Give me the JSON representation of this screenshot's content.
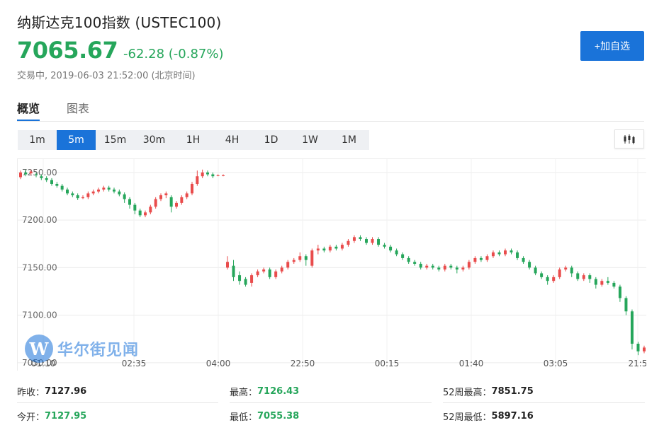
{
  "header": {
    "title": "纳斯达克100指数  (USTEC100)",
    "price": "7065.67",
    "change": "-62.28 (-0.87%)",
    "status_label": "交易中",
    "status_time": "2019-06-03 21:52:00 (北京时间)",
    "add_watch_label": "+加自选"
  },
  "tabs": [
    {
      "label": "概览",
      "active": true
    },
    {
      "label": "图表",
      "active": false
    }
  ],
  "intervals": [
    {
      "label": "1m",
      "active": false
    },
    {
      "label": "5m",
      "active": true
    },
    {
      "label": "15m",
      "active": false
    },
    {
      "label": "30m",
      "active": false
    },
    {
      "label": "1H",
      "active": false
    },
    {
      "label": "4H",
      "active": false
    },
    {
      "label": "1D",
      "active": false
    },
    {
      "label": "1W",
      "active": false
    },
    {
      "label": "1M",
      "active": false
    }
  ],
  "chart_type_icon": "candlestick-icon",
  "chart_data": {
    "type": "candlestick",
    "y_ticks": [
      "7250.00",
      "7200.00",
      "7150.00",
      "7100.00",
      "7050.00"
    ],
    "y_tick_values": [
      7250,
      7200,
      7150,
      7100,
      7050
    ],
    "ylim": [
      7044,
      7264
    ],
    "x_ticks": [
      "01:10",
      "02:35",
      "04:00",
      "22:50",
      "00:15",
      "01:40",
      "03:05",
      "21:5"
    ],
    "up_color": "#e94c4c",
    "down_color": "#26a65b",
    "candles": [
      [
        7245,
        7250,
        7243,
        7252
      ],
      [
        7250,
        7248,
        7246,
        7253
      ],
      [
        7249,
        7251,
        7247,
        7253
      ],
      [
        7248,
        7247,
        7245,
        7250
      ],
      [
        7246,
        7244,
        7242,
        7248
      ],
      [
        7244,
        7242,
        7240,
        7246
      ],
      [
        7242,
        7238,
        7236,
        7244
      ],
      [
        7238,
        7236,
        7234,
        7240
      ],
      [
        7236,
        7232,
        7230,
        7238
      ],
      [
        7232,
        7228,
        7226,
        7234
      ],
      [
        7228,
        7226,
        7224,
        7230
      ],
      [
        7226,
        7223,
        7221,
        7228
      ],
      [
        7223,
        7224,
        7222,
        7226
      ],
      [
        7224,
        7228,
        7222,
        7230
      ],
      [
        7228,
        7230,
        7226,
        7232
      ],
      [
        7230,
        7232,
        7228,
        7234
      ],
      [
        7232,
        7234,
        7230,
        7236
      ],
      [
        7234,
        7232,
        7230,
        7236
      ],
      [
        7232,
        7230,
        7228,
        7234
      ],
      [
        7230,
        7227,
        7225,
        7232
      ],
      [
        7227,
        7222,
        7218,
        7229
      ],
      [
        7222,
        7216,
        7212,
        7224
      ],
      [
        7216,
        7210,
        7206,
        7218
      ],
      [
        7210,
        7205,
        7203,
        7212
      ],
      [
        7205,
        7208,
        7203,
        7210
      ],
      [
        7208,
        7214,
        7206,
        7216
      ],
      [
        7214,
        7222,
        7212,
        7224
      ],
      [
        7222,
        7226,
        7220,
        7228
      ],
      [
        7226,
        7228,
        7223,
        7230
      ],
      [
        7224,
        7214,
        7208,
        7226
      ],
      [
        7214,
        7218,
        7212,
        7220
      ],
      [
        7218,
        7224,
        7216,
        7226
      ],
      [
        7224,
        7228,
        7222,
        7230
      ],
      [
        7228,
        7238,
        7226,
        7240
      ],
      [
        7238,
        7246,
        7236,
        7252
      ],
      [
        7246,
        7250,
        7244,
        7253
      ],
      [
        7250,
        7248,
        7246,
        7252
      ],
      [
        7248,
        7246,
        7244,
        7250
      ],
      [
        7247,
        7247,
        7246,
        7248
      ],
      [
        7247,
        7247,
        7246,
        7248
      ],
      [
        7150,
        7156,
        7148,
        7162
      ],
      [
        7152,
        7140,
        7136,
        7158
      ],
      [
        7142,
        7136,
        7132,
        7146
      ],
      [
        7138,
        7132,
        7130,
        7140
      ],
      [
        7134,
        7142,
        7130,
        7144
      ],
      [
        7142,
        7146,
        7140,
        7148
      ],
      [
        7146,
        7148,
        7144,
        7150
      ],
      [
        7148,
        7140,
        7138,
        7150
      ],
      [
        7140,
        7146,
        7138,
        7148
      ],
      [
        7146,
        7150,
        7144,
        7152
      ],
      [
        7150,
        7156,
        7148,
        7158
      ],
      [
        7156,
        7158,
        7154,
        7160
      ],
      [
        7158,
        7162,
        7156,
        7166
      ],
      [
        7162,
        7158,
        7152,
        7164
      ],
      [
        7152,
        7168,
        7150,
        7170
      ],
      [
        7168,
        7170,
        7164,
        7174
      ],
      [
        7170,
        7168,
        7166,
        7172
      ],
      [
        7168,
        7172,
        7166,
        7174
      ],
      [
        7172,
        7170,
        7168,
        7174
      ],
      [
        7170,
        7174,
        7168,
        7176
      ],
      [
        7174,
        7178,
        7172,
        7180
      ],
      [
        7178,
        7182,
        7176,
        7184
      ],
      [
        7182,
        7180,
        7178,
        7184
      ],
      [
        7180,
        7176,
        7174,
        7182
      ],
      [
        7176,
        7180,
        7174,
        7182
      ],
      [
        7180,
        7174,
        7172,
        7182
      ],
      [
        7174,
        7172,
        7170,
        7176
      ],
      [
        7172,
        7168,
        7166,
        7174
      ],
      [
        7168,
        7164,
        7162,
        7170
      ],
      [
        7164,
        7160,
        7158,
        7166
      ],
      [
        7160,
        7156,
        7154,
        7162
      ],
      [
        7156,
        7154,
        7152,
        7158
      ],
      [
        7154,
        7150,
        7148,
        7156
      ],
      [
        7150,
        7152,
        7148,
        7154
      ],
      [
        7152,
        7150,
        7148,
        7154
      ],
      [
        7150,
        7148,
        7146,
        7152
      ],
      [
        7148,
        7152,
        7146,
        7154
      ],
      [
        7152,
        7150,
        7148,
        7154
      ],
      [
        7150,
        7148,
        7144,
        7152
      ],
      [
        7148,
        7150,
        7146,
        7152
      ],
      [
        7150,
        7156,
        7148,
        7158
      ],
      [
        7156,
        7160,
        7154,
        7162
      ],
      [
        7160,
        7158,
        7156,
        7162
      ],
      [
        7158,
        7162,
        7156,
        7164
      ],
      [
        7162,
        7166,
        7160,
        7168
      ],
      [
        7166,
        7164,
        7162,
        7168
      ],
      [
        7164,
        7168,
        7162,
        7170
      ],
      [
        7168,
        7166,
        7164,
        7170
      ],
      [
        7166,
        7160,
        7158,
        7168
      ],
      [
        7160,
        7156,
        7154,
        7162
      ],
      [
        7156,
        7150,
        7148,
        7158
      ],
      [
        7150,
        7144,
        7142,
        7152
      ],
      [
        7144,
        7140,
        7138,
        7146
      ],
      [
        7140,
        7136,
        7132,
        7142
      ],
      [
        7136,
        7140,
        7134,
        7142
      ],
      [
        7140,
        7148,
        7138,
        7150
      ],
      [
        7148,
        7150,
        7146,
        7152
      ],
      [
        7150,
        7144,
        7140,
        7152
      ],
      [
        7144,
        7138,
        7136,
        7146
      ],
      [
        7138,
        7142,
        7136,
        7144
      ],
      [
        7142,
        7138,
        7134,
        7144
      ],
      [
        7138,
        7132,
        7128,
        7140
      ],
      [
        7132,
        7136,
        7130,
        7138
      ],
      [
        7136,
        7134,
        7132,
        7140
      ],
      [
        7134,
        7130,
        7128,
        7136
      ],
      [
        7130,
        7118,
        7114,
        7132
      ],
      [
        7118,
        7104,
        7100,
        7120
      ],
      [
        7104,
        7070,
        7064,
        7106
      ],
      [
        7070,
        7062,
        7058,
        7072
      ],
      [
        7062,
        7066,
        7060,
        7068
      ]
    ],
    "candles_left_count": 40
  },
  "stats": [
    {
      "label": "昨收：",
      "value": "7127.96",
      "green": false
    },
    {
      "label": "最高：",
      "value": "7126.43",
      "green": true
    },
    {
      "label": "52周最高：",
      "value": "7851.75",
      "green": false
    },
    {
      "label": "今开：",
      "value": "7127.95",
      "green": true
    },
    {
      "label": "最低：",
      "value": "7055.38",
      "green": true
    },
    {
      "label": "52周最低：",
      "value": "5897.16",
      "green": false
    }
  ],
  "logo_text": "华尔街见闻",
  "logo_mark": "W"
}
